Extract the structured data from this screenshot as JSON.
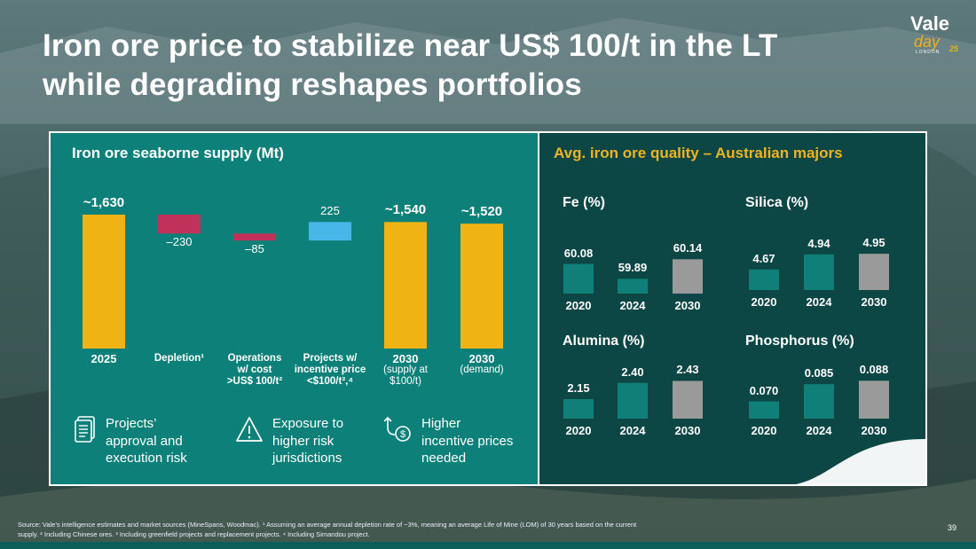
{
  "title": "Iron ore price to stabilize near US$ 100/t in the LT while degrading reshapes portfolios",
  "logo": {
    "main": "Vale",
    "sub": "day",
    "place": "LONDON",
    "year": "25"
  },
  "left_panel": {
    "title": "Iron ore seaborne supply (Mt)",
    "footer": [
      {
        "icon": "document-icon",
        "text": "Projects’ approval and execution risk"
      },
      {
        "icon": "warning-icon",
        "text": "Exposure to higher risk jurisdictions"
      },
      {
        "icon": "price-increase-icon",
        "text": "Higher incentive prices needed"
      }
    ]
  },
  "right_panel": {
    "title": "Avg. iron ore quality – Australian majors"
  },
  "chart_data": [
    {
      "type": "bar",
      "subtype": "waterfall",
      "title": "Iron ore seaborne supply (Mt)",
      "categories": [
        "2025",
        "Depletion¹",
        "Operations w/ cost >US$ 100/t²",
        "Projects w/ incentive price <$100/t³,⁴",
        "2030 (supply at $100/t)",
        "2030 (demand)"
      ],
      "values": [
        1630,
        -230,
        -85,
        225,
        1540,
        1520
      ],
      "value_labels": [
        "~1,630",
        "–230",
        "–85",
        "225",
        "~1,540",
        "~1,520"
      ],
      "label_lines": [
        [
          "2025"
        ],
        [
          "Depletion¹"
        ],
        [
          "Operations",
          "w/ cost",
          ">US$ 100/t²"
        ],
        [
          "Projects w/",
          "incentive price",
          "<$100/t³,⁴"
        ],
        [
          "2030",
          "(supply at",
          "$100/t)"
        ],
        [
          "2030",
          "(demand)"
        ]
      ],
      "kinds": [
        "total",
        "decrease",
        "decrease",
        "increase",
        "total",
        "total"
      ],
      "colors": {
        "total": "#efb414",
        "decrease": "#c0325a",
        "increase": "#47b7e8"
      },
      "ylim": [
        0,
        1700
      ]
    },
    {
      "type": "bar",
      "title": "Fe (%)",
      "categories": [
        "2020",
        "2024",
        "2030"
      ],
      "values": [
        60.08,
        59.89,
        60.14
      ],
      "value_labels": [
        "60.08",
        "59.89",
        "60.14"
      ],
      "ylim": [
        59.7,
        60.2
      ],
      "colors": [
        "#0f7f78",
        "#0f7f78",
        "#9a9a9a"
      ]
    },
    {
      "type": "bar",
      "title": "Silica (%)",
      "categories": [
        "2020",
        "2024",
        "2030"
      ],
      "values": [
        4.67,
        4.94,
        4.95
      ],
      "value_labels": [
        "4.67",
        "4.94",
        "4.95"
      ],
      "ylim": [
        4.3,
        5.0
      ],
      "colors": [
        "#0f7f78",
        "#0f7f78",
        "#9a9a9a"
      ]
    },
    {
      "type": "bar",
      "title": "Alumina (%)",
      "categories": [
        "2020",
        "2024",
        "2030"
      ],
      "values": [
        2.15,
        2.4,
        2.43
      ],
      "value_labels": [
        "2.15",
        "2.40",
        "2.43"
      ],
      "ylim": [
        1.85,
        2.45
      ],
      "colors": [
        "#0f7f78",
        "#0f7f78",
        "#9a9a9a"
      ]
    },
    {
      "type": "bar",
      "title": "Phosphorus (%)",
      "categories": [
        "2020",
        "2024",
        "2030"
      ],
      "values": [
        0.07,
        0.085,
        0.088
      ],
      "value_labels": [
        "0.070",
        "0.085",
        "0.088"
      ],
      "ylim": [
        0.055,
        0.089
      ],
      "colors": [
        "#0f7f78",
        "#0f7f78",
        "#9a9a9a"
      ]
    }
  ],
  "source": "Source: Vale’s intelligence estimates and market sources (MineSpans, Woodmac). ¹ Assuming an average annual depletion rate of ~3%, meaning an average Life of Mine (LOM) of 30 years based on the current supply. ² Including Chinese ores. ³ Including greenfield projects and replacement projects. ⁴ Including Simandou project.",
  "page_number": "39"
}
